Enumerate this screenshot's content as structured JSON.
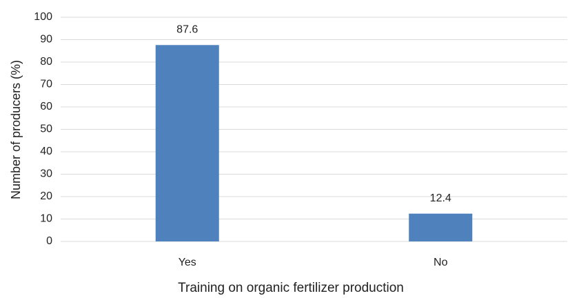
{
  "chart_data": {
    "type": "bar",
    "x_label": "Training on organic fertilizer production",
    "y_label": "Number of producers (%)",
    "categories": [
      "Yes",
      "No"
    ],
    "values": [
      87.6,
      12.4
    ],
    "color": "#4f81bd",
    "ylim": [
      0,
      100
    ],
    "yticks": [
      0,
      10,
      20,
      30,
      40,
      50,
      60,
      70,
      80,
      90,
      100
    ],
    "grid": true
  }
}
